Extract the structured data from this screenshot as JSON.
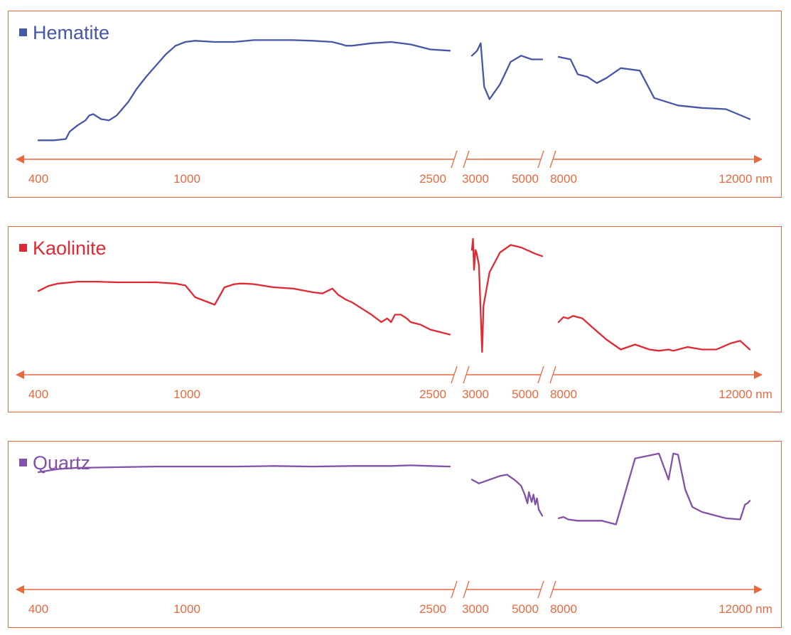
{
  "colors": {
    "axis": "#e9693f",
    "hematite": "#4657a8",
    "kaolinite": "#e02a33",
    "quartz": "#8352a8"
  },
  "axis": {
    "tick_labels": [
      "400",
      "1000",
      "2500",
      "3000",
      "5000",
      "8000",
      "12000 nm"
    ],
    "unit": "nm",
    "breaks": [
      [
        2500,
        3000
      ],
      [
        5000,
        8000
      ]
    ]
  },
  "chart_data": [
    {
      "type": "line",
      "title": "Hematite",
      "color": "#4657a8",
      "xlabel": "",
      "ylabel": "",
      "x_unit": "nm",
      "y_ticks": false,
      "grid": false,
      "segments": [
        {
          "x": [
            400,
            480,
            540,
            560,
            600,
            640,
            660,
            680,
            720,
            760,
            800,
            860,
            900,
            950,
            1000,
            1050,
            1100,
            1150,
            1200,
            1300,
            1400,
            1500,
            1600,
            1700,
            1800,
            1900,
            1950,
            1970,
            2000,
            2100,
            2200,
            2300,
            2400,
            2500
          ],
          "y": [
            0.05,
            0.05,
            0.06,
            0.12,
            0.17,
            0.21,
            0.25,
            0.26,
            0.22,
            0.21,
            0.25,
            0.36,
            0.46,
            0.56,
            0.65,
            0.74,
            0.81,
            0.84,
            0.85,
            0.84,
            0.84,
            0.855,
            0.855,
            0.855,
            0.85,
            0.84,
            0.82,
            0.81,
            0.81,
            0.83,
            0.84,
            0.82,
            0.78,
            0.77
          ]
        },
        {
          "x": [
            3000,
            3150,
            3250,
            3350,
            3500,
            3800,
            4100,
            4400,
            4700,
            5000
          ],
          "y": [
            0.73,
            0.77,
            0.83,
            0.48,
            0.38,
            0.5,
            0.68,
            0.73,
            0.7,
            0.7
          ]
        },
        {
          "x": [
            8000,
            8250,
            8400,
            8600,
            8800,
            9000,
            9300,
            9700,
            10000,
            10500,
            11000,
            11500,
            12000
          ],
          "y": [
            0.72,
            0.7,
            0.58,
            0.56,
            0.51,
            0.55,
            0.63,
            0.61,
            0.39,
            0.33,
            0.31,
            0.3,
            0.22
          ]
        }
      ]
    },
    {
      "type": "line",
      "title": "Kaolinite",
      "color": "#e02a33",
      "xlabel": "",
      "ylabel": "",
      "x_unit": "nm",
      "y_ticks": false,
      "grid": false,
      "segments": [
        {
          "x": [
            400,
            450,
            500,
            600,
            700,
            800,
            900,
            1000,
            1100,
            1150,
            1200,
            1300,
            1350,
            1400,
            1430,
            1450,
            1500,
            1600,
            1700,
            1800,
            1850,
            1900,
            1930,
            1970,
            2000,
            2100,
            2150,
            2180,
            2200,
            2220,
            2250,
            2280,
            2300,
            2350,
            2400,
            2450,
            2500
          ],
          "y": [
            0.57,
            0.61,
            0.63,
            0.645,
            0.645,
            0.64,
            0.64,
            0.64,
            0.63,
            0.615,
            0.52,
            0.46,
            0.6,
            0.625,
            0.63,
            0.63,
            0.625,
            0.6,
            0.59,
            0.56,
            0.55,
            0.59,
            0.54,
            0.5,
            0.48,
            0.38,
            0.32,
            0.35,
            0.32,
            0.38,
            0.38,
            0.35,
            0.32,
            0.3,
            0.26,
            0.24,
            0.22
          ]
        },
        {
          "x": [
            3000,
            3030,
            3060,
            3100,
            3130,
            3200,
            3290,
            3330,
            3500,
            3800,
            4100,
            4400,
            4800,
            5000
          ],
          "y": [
            0.9,
            0.99,
            0.74,
            0.9,
            0.88,
            0.78,
            0.08,
            0.45,
            0.72,
            0.88,
            0.94,
            0.92,
            0.87,
            0.85
          ]
        },
        {
          "x": [
            8000,
            8100,
            8200,
            8300,
            8500,
            8700,
            9000,
            9300,
            9600,
            9900,
            10100,
            10300,
            10400,
            10700,
            11000,
            11300,
            11600,
            11800,
            12000
          ],
          "y": [
            0.32,
            0.36,
            0.35,
            0.37,
            0.35,
            0.28,
            0.18,
            0.1,
            0.14,
            0.1,
            0.09,
            0.1,
            0.09,
            0.12,
            0.1,
            0.1,
            0.15,
            0.17,
            0.1
          ]
        }
      ]
    },
    {
      "type": "line",
      "title": "Quartz",
      "color": "#8352a8",
      "xlabel": "",
      "ylabel": "",
      "x_unit": "nm",
      "y_ticks": false,
      "grid": false,
      "segments": [
        {
          "x": [
            400,
            500,
            600,
            800,
            1000,
            1200,
            1400,
            1600,
            1800,
            2000,
            2100,
            2200,
            2300,
            2400,
            2500
          ],
          "y": [
            0.84,
            0.865,
            0.875,
            0.88,
            0.885,
            0.885,
            0.885,
            0.89,
            0.885,
            0.89,
            0.89,
            0.89,
            0.895,
            0.89,
            0.885
          ]
        },
        {
          "x": [
            3000,
            3200,
            3400,
            3600,
            3800,
            4000,
            4100,
            4250,
            4400,
            4500,
            4580,
            4620,
            4700,
            4750,
            4800,
            4850,
            4900,
            5000
          ],
          "y": [
            0.78,
            0.75,
            0.77,
            0.79,
            0.81,
            0.82,
            0.8,
            0.77,
            0.73,
            0.66,
            0.59,
            0.68,
            0.6,
            0.66,
            0.58,
            0.63,
            0.54,
            0.49
          ]
        },
        {
          "x": [
            8000,
            8100,
            8200,
            8400,
            8600,
            8900,
            9200,
            9600,
            10100,
            10300,
            10400,
            10500,
            10650,
            10800,
            11000,
            11500,
            11800,
            11900,
            11950,
            12000
          ],
          "y": [
            0.47,
            0.48,
            0.46,
            0.45,
            0.45,
            0.45,
            0.42,
            0.95,
            0.99,
            0.78,
            0.99,
            0.98,
            0.7,
            0.56,
            0.52,
            0.47,
            0.46,
            0.58,
            0.59,
            0.61
          ]
        }
      ]
    }
  ]
}
